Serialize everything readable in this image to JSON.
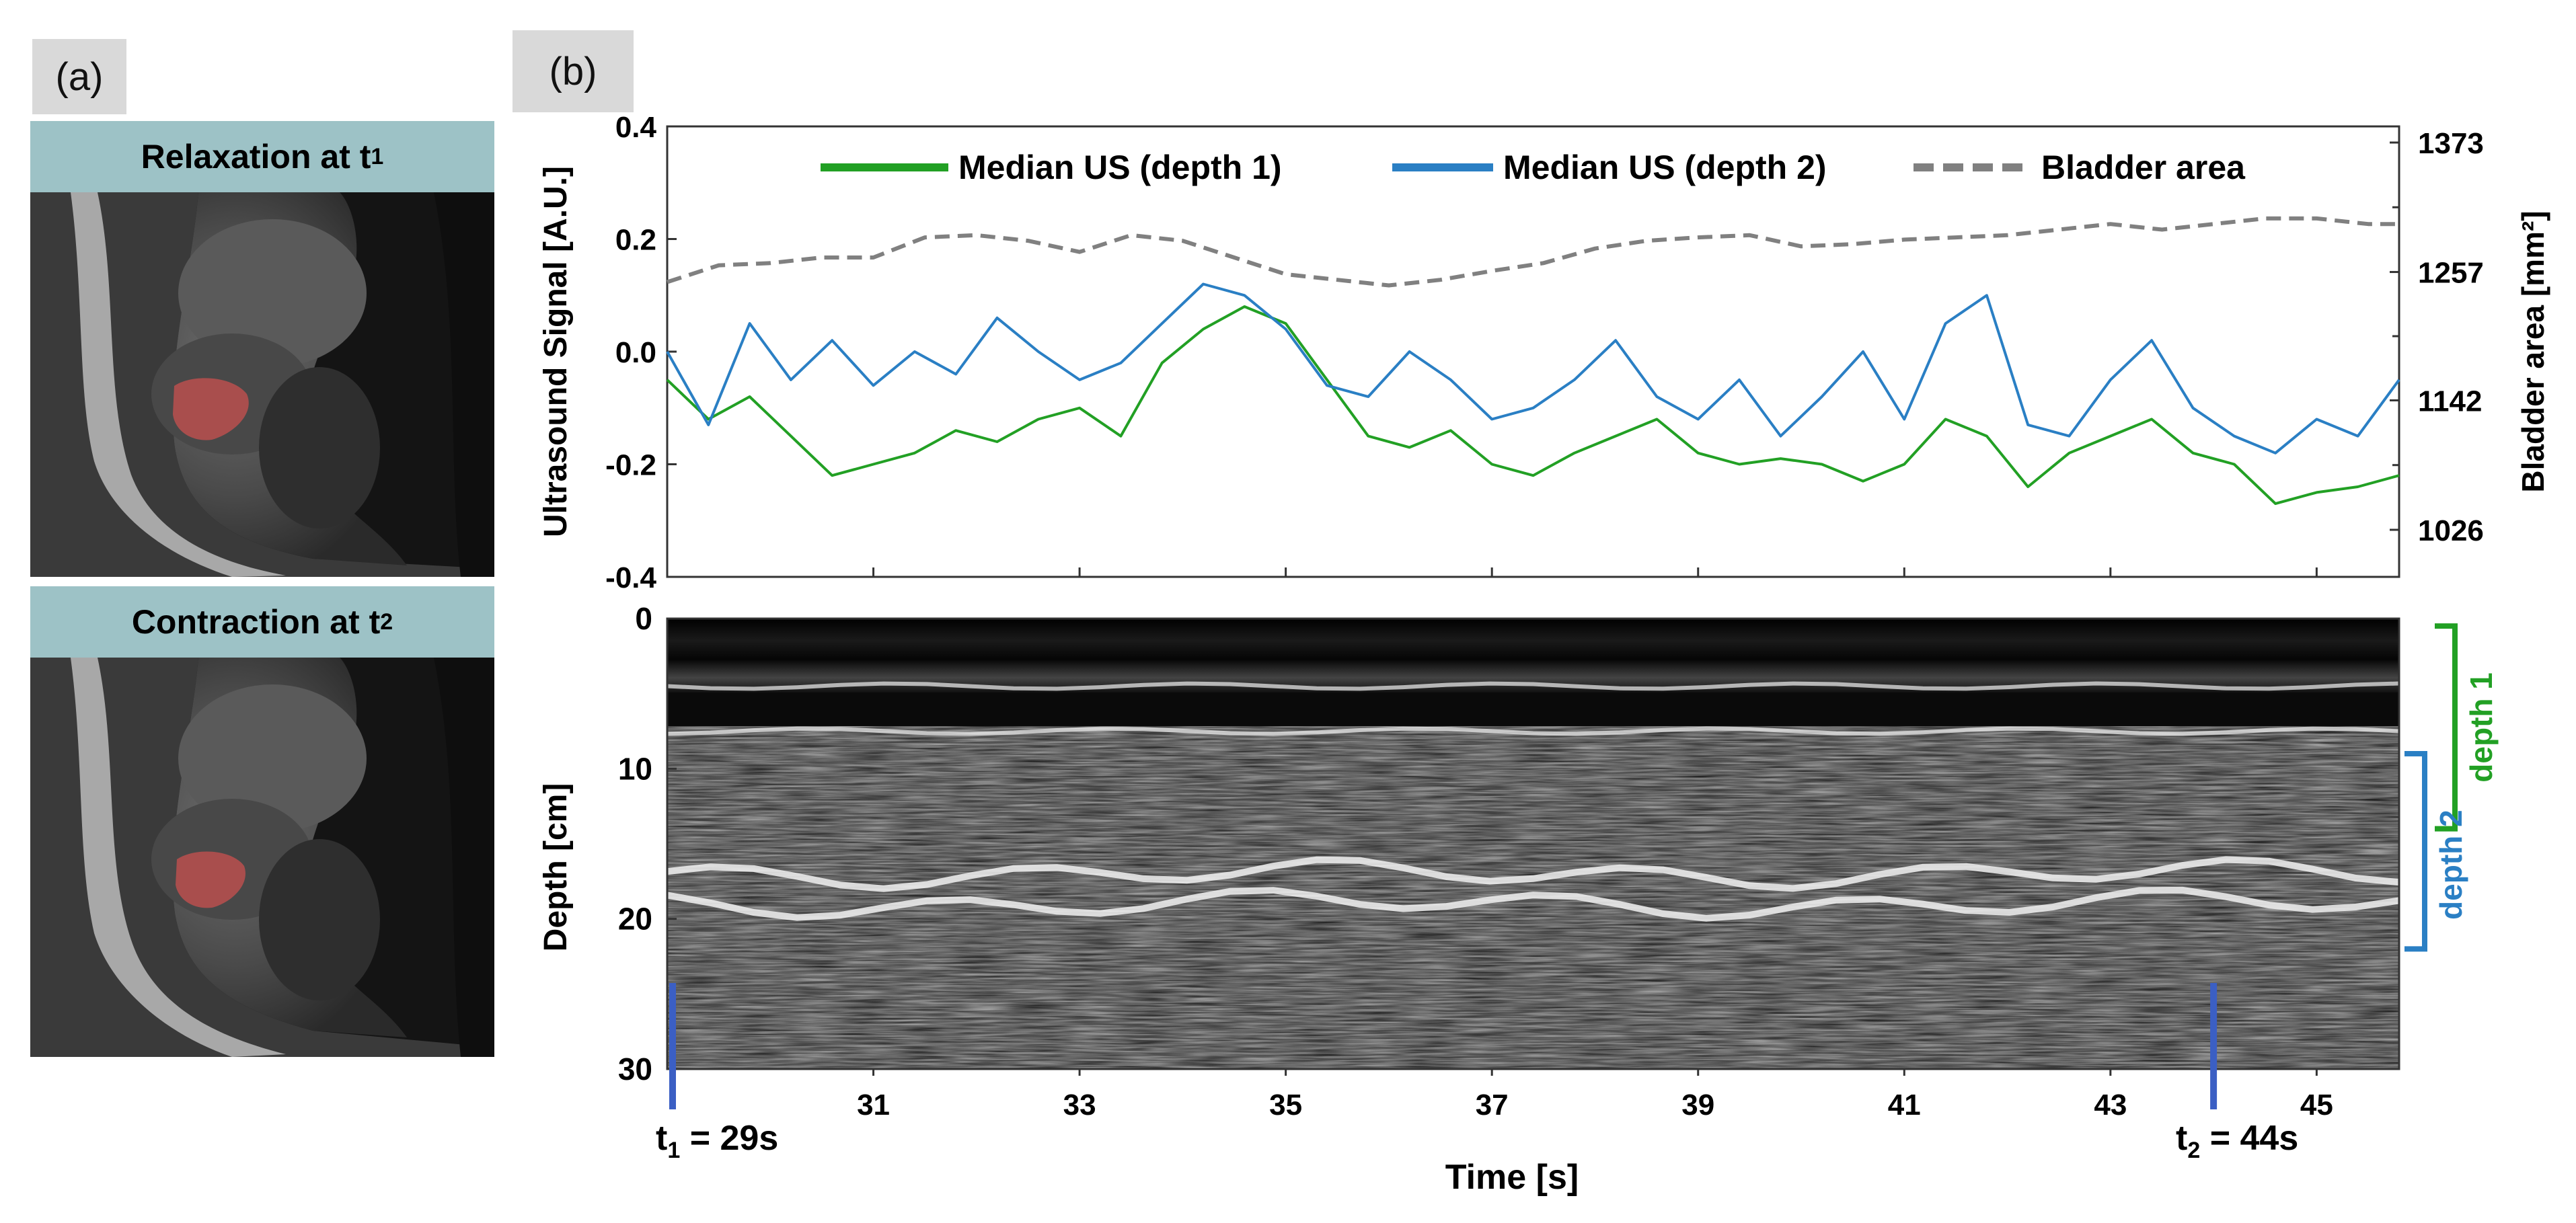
{
  "panel_a": {
    "tag": "(a)",
    "top_header": "Relaxation at t",
    "top_header_sub": "1",
    "bottom_header": "Contraction at t",
    "bottom_header_sub": "2"
  },
  "panel_b": {
    "tag": "(b)"
  },
  "colors": {
    "depth1": "#22a024",
    "depth2": "#2a7fc4",
    "bladder": "#808080",
    "marker": "#3b5fc4",
    "header_bg": "#9dc2c6"
  },
  "chart_data": [
    {
      "type": "line",
      "ylabel": "Ultrasound Signal [A.U.]",
      "y2label": "Bladder area [mm²]",
      "ylim": [
        -0.4,
        0.4
      ],
      "y_ticks": [
        "0.4",
        "0.2",
        "0.0",
        "-0.2",
        "-0.4"
      ],
      "y2_ticks": [
        "1373",
        "1257",
        "1142",
        "1026"
      ],
      "y2lim": [
        1026,
        1373
      ],
      "xlim": [
        29,
        45.8
      ],
      "legend_placement": "top",
      "series": [
        {
          "name": "Median US (depth 1)",
          "x": [
            29.0,
            29.4,
            29.8,
            30.2,
            30.6,
            31.0,
            31.4,
            31.8,
            32.2,
            32.6,
            33.0,
            33.4,
            33.8,
            34.2,
            34.6,
            35.0,
            35.4,
            35.8,
            36.2,
            36.6,
            37.0,
            37.4,
            37.8,
            38.2,
            38.6,
            39.0,
            39.4,
            39.8,
            40.2,
            40.6,
            41.0,
            41.4,
            41.8,
            42.2,
            42.6,
            43.0,
            43.4,
            43.8,
            44.2,
            44.6,
            45.0,
            45.4,
            45.8
          ],
          "values": [
            -0.05,
            -0.12,
            -0.08,
            -0.15,
            -0.22,
            -0.2,
            -0.18,
            -0.14,
            -0.16,
            -0.12,
            -0.1,
            -0.15,
            -0.02,
            0.04,
            0.08,
            0.05,
            -0.05,
            -0.15,
            -0.17,
            -0.14,
            -0.2,
            -0.22,
            -0.18,
            -0.15,
            -0.12,
            -0.18,
            -0.2,
            -0.19,
            -0.2,
            -0.23,
            -0.2,
            -0.12,
            -0.15,
            -0.24,
            -0.18,
            -0.15,
            -0.12,
            -0.18,
            -0.2,
            -0.27,
            -0.25,
            -0.24,
            -0.22
          ]
        },
        {
          "name": "Median US (depth 2)",
          "x": [
            29.0,
            29.4,
            29.8,
            30.2,
            30.6,
            31.0,
            31.4,
            31.8,
            32.2,
            32.6,
            33.0,
            33.4,
            33.8,
            34.2,
            34.6,
            35.0,
            35.4,
            35.8,
            36.2,
            36.6,
            37.0,
            37.4,
            37.8,
            38.2,
            38.6,
            39.0,
            39.4,
            39.8,
            40.2,
            40.6,
            41.0,
            41.4,
            41.8,
            42.2,
            42.6,
            43.0,
            43.4,
            43.8,
            44.2,
            44.6,
            45.0,
            45.4,
            45.8
          ],
          "values": [
            0.0,
            -0.13,
            0.05,
            -0.05,
            0.02,
            -0.06,
            0.0,
            -0.04,
            0.06,
            0.0,
            -0.05,
            -0.02,
            0.05,
            0.12,
            0.1,
            0.04,
            -0.06,
            -0.08,
            0.0,
            -0.05,
            -0.12,
            -0.1,
            -0.05,
            0.02,
            -0.08,
            -0.12,
            -0.05,
            -0.15,
            -0.08,
            0.0,
            -0.12,
            0.05,
            0.1,
            -0.13,
            -0.15,
            -0.05,
            0.02,
            -0.1,
            -0.15,
            -0.18,
            -0.12,
            -0.15,
            -0.05
          ]
        },
        {
          "name": "Bladder area",
          "axis": "right",
          "x": [
            29.0,
            29.5,
            30.0,
            30.5,
            31.0,
            31.5,
            32.0,
            32.5,
            33.0,
            33.5,
            34.0,
            34.5,
            35.0,
            35.5,
            36.0,
            36.5,
            37.0,
            37.5,
            38.0,
            38.5,
            39.0,
            39.5,
            40.0,
            40.5,
            41.0,
            41.5,
            42.0,
            42.5,
            43.0,
            43.5,
            44.0,
            44.5,
            45.0,
            45.5,
            45.8
          ],
          "values": [
            1248,
            1263,
            1265,
            1270,
            1270,
            1288,
            1290,
            1285,
            1275,
            1290,
            1285,
            1270,
            1255,
            1250,
            1245,
            1250,
            1258,
            1265,
            1278,
            1285,
            1288,
            1290,
            1280,
            1282,
            1286,
            1288,
            1290,
            1295,
            1300,
            1295,
            1300,
            1305,
            1305,
            1300,
            1300
          ]
        }
      ]
    },
    {
      "type": "heatmap",
      "ylabel": "Depth [cm]",
      "xlabel": "Time [s]",
      "ylim": [
        0,
        30
      ],
      "y_ticks": [
        "0",
        "10",
        "20",
        "30"
      ],
      "xlim": [
        29,
        45.8
      ],
      "x_ticks": [
        "31",
        "33",
        "35",
        "37",
        "39",
        "41",
        "43",
        "45"
      ],
      "bright_bands_depth_cm": [
        4.5,
        7.5,
        17,
        19
      ],
      "depth1_range_cm": [
        0.5,
        14
      ],
      "depth2_range_cm": [
        9,
        22
      ],
      "depth1_label": "depth 1",
      "depth2_label": "depth 2",
      "markers": [
        {
          "x": 29,
          "label_main": "t",
          "label_sub": "1",
          "label_tail": " = 29s"
        },
        {
          "x": 44,
          "label_main": "t",
          "label_sub": "2",
          "label_tail": " = 44s"
        }
      ]
    }
  ]
}
